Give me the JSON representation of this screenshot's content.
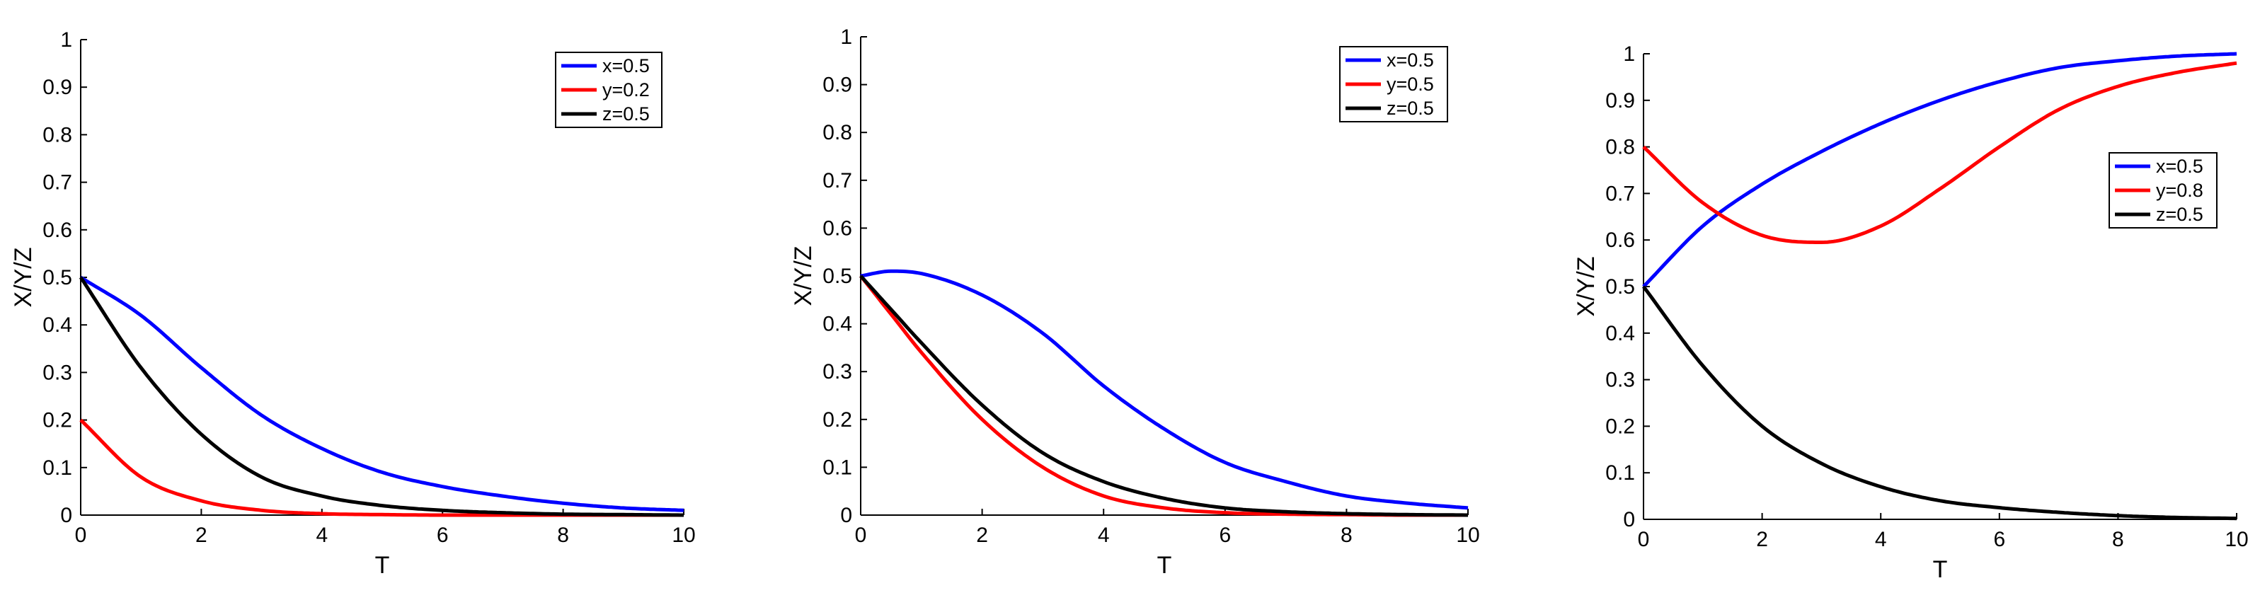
{
  "chart_data": [
    {
      "type": "line",
      "xlabel": "T",
      "ylabel": "X/Y/Z",
      "xlim": [
        0,
        10
      ],
      "ylim": [
        0,
        1
      ],
      "xticks": [
        "0",
        "2",
        "4",
        "6",
        "8",
        "10"
      ],
      "yticks": [
        "0",
        "0.1",
        "0.2",
        "0.3",
        "0.4",
        "0.5",
        "0.6",
        "0.7",
        "0.8",
        "0.9",
        "1"
      ],
      "legend_position": "top-right",
      "x": [
        0,
        1,
        2,
        3,
        4,
        5,
        6,
        7,
        8,
        9,
        10
      ],
      "series": [
        {
          "name": "x=0.5",
          "color": "#0000ff",
          "values": [
            0.5,
            0.42,
            0.31,
            0.21,
            0.14,
            0.09,
            0.06,
            0.04,
            0.025,
            0.015,
            0.01
          ]
        },
        {
          "name": "y=0.2",
          "color": "#ff0000",
          "values": [
            0.2,
            0.08,
            0.03,
            0.01,
            0.003,
            0.001,
            0.0,
            0.0,
            0.0,
            0.0,
            0.0
          ]
        },
        {
          "name": "z=0.5",
          "color": "#000000",
          "values": [
            0.5,
            0.31,
            0.17,
            0.08,
            0.04,
            0.02,
            0.01,
            0.005,
            0.002,
            0.001,
            0.0
          ]
        }
      ]
    },
    {
      "type": "line",
      "xlabel": "T",
      "ylabel": "X/Y/Z",
      "xlim": [
        0,
        10
      ],
      "ylim": [
        0,
        1
      ],
      "xticks": [
        "0",
        "2",
        "4",
        "6",
        "8",
        "10"
      ],
      "yticks": [
        "0",
        "0.1",
        "0.2",
        "0.3",
        "0.4",
        "0.5",
        "0.6",
        "0.7",
        "0.8",
        "0.9",
        "1"
      ],
      "legend_position": "top-right",
      "x": [
        0,
        0.5,
        1,
        2,
        3,
        4,
        5,
        6,
        7,
        8,
        9,
        10
      ],
      "series": [
        {
          "name": "x=0.5",
          "color": "#0000ff",
          "values": [
            0.5,
            0.51,
            0.505,
            0.46,
            0.38,
            0.27,
            0.18,
            0.11,
            0.07,
            0.04,
            0.025,
            0.015
          ]
        },
        {
          "name": "y=0.5",
          "color": "#ff0000",
          "values": [
            0.5,
            0.42,
            0.34,
            0.2,
            0.1,
            0.04,
            0.015,
            0.005,
            0.002,
            0.001,
            0.0,
            0.0
          ]
        },
        {
          "name": "z=0.5",
          "color": "#000000",
          "values": [
            0.5,
            0.43,
            0.36,
            0.23,
            0.13,
            0.07,
            0.035,
            0.015,
            0.007,
            0.003,
            0.001,
            0.0
          ]
        }
      ]
    },
    {
      "type": "line",
      "xlabel": "T",
      "ylabel": "X/Y/Z",
      "xlim": [
        0,
        10
      ],
      "ylim": [
        0,
        1
      ],
      "xticks": [
        "0",
        "2",
        "4",
        "6",
        "8",
        "10"
      ],
      "yticks": [
        "0",
        "0.1",
        "0.2",
        "0.3",
        "0.4",
        "0.5",
        "0.6",
        "0.7",
        "0.8",
        "0.9",
        "1"
      ],
      "legend_position": "middle-right",
      "x": [
        0,
        1,
        2,
        3,
        4,
        5,
        6,
        7,
        8,
        9,
        10
      ],
      "series": [
        {
          "name": "x=0.5",
          "color": "#0000ff",
          "values": [
            0.5,
            0.63,
            0.72,
            0.79,
            0.85,
            0.9,
            0.94,
            0.97,
            0.985,
            0.995,
            1.0
          ]
        },
        {
          "name": "y=0.8",
          "color": "#ff0000",
          "values": [
            0.8,
            0.68,
            0.61,
            0.595,
            0.63,
            0.71,
            0.8,
            0.88,
            0.93,
            0.96,
            0.98
          ]
        },
        {
          "name": "z=0.5",
          "color": "#000000",
          "values": [
            0.5,
            0.33,
            0.2,
            0.12,
            0.07,
            0.04,
            0.025,
            0.015,
            0.008,
            0.004,
            0.002
          ]
        }
      ]
    }
  ]
}
